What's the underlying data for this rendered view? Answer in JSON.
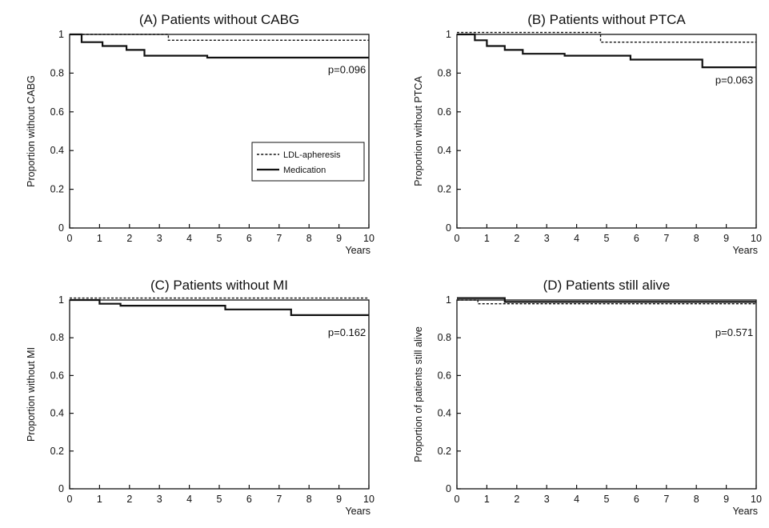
{
  "chart_data": [
    {
      "type": "line",
      "title": "(A) Patients without CABG",
      "xlabel": "Years",
      "ylabel": "Proportion without CABG",
      "xlim": [
        0,
        10
      ],
      "ylim": [
        0,
        1
      ],
      "xticks": [
        "0",
        "1",
        "2",
        "3",
        "4",
        "5",
        "6",
        "7",
        "8",
        "9",
        "10"
      ],
      "yticks": [
        "0",
        "0.2",
        "0.4",
        "0.6",
        "0.8",
        "1"
      ],
      "annotation": "p=0.096",
      "legend": [
        "LDL-apheresis",
        "Medication"
      ],
      "legend_position": "center-right",
      "series": [
        {
          "name": "LDL-apheresis",
          "style": "dashed",
          "points": [
            [
              0,
              1.0
            ],
            [
              3.3,
              1.0
            ],
            [
              3.3,
              0.97
            ],
            [
              10,
              0.97
            ]
          ]
        },
        {
          "name": "Medication",
          "style": "solid",
          "points": [
            [
              0,
              1.0
            ],
            [
              0.4,
              1.0
            ],
            [
              0.4,
              0.96
            ],
            [
              1.1,
              0.96
            ],
            [
              1.1,
              0.94
            ],
            [
              1.9,
              0.94
            ],
            [
              1.9,
              0.92
            ],
            [
              2.5,
              0.92
            ],
            [
              2.5,
              0.89
            ],
            [
              4.6,
              0.89
            ],
            [
              4.6,
              0.88
            ],
            [
              10,
              0.88
            ]
          ]
        }
      ]
    },
    {
      "type": "line",
      "title": "(B) Patients without PTCA",
      "xlabel": "Years",
      "ylabel": "Proportion without PTCA",
      "xlim": [
        0,
        10
      ],
      "ylim": [
        0,
        1
      ],
      "xticks": [
        "0",
        "1",
        "2",
        "3",
        "4",
        "5",
        "6",
        "7",
        "8",
        "9",
        "10"
      ],
      "yticks": [
        "0",
        "0.2",
        "0.4",
        "0.6",
        "0.8",
        "1"
      ],
      "annotation": "p=0.063",
      "series": [
        {
          "name": "LDL-apheresis",
          "style": "dashed",
          "points": [
            [
              0,
              1.01
            ],
            [
              4.8,
              1.01
            ],
            [
              4.8,
              0.96
            ],
            [
              10,
              0.96
            ]
          ]
        },
        {
          "name": "Medication",
          "style": "solid",
          "points": [
            [
              0,
              1.0
            ],
            [
              0.6,
              1.0
            ],
            [
              0.6,
              0.97
            ],
            [
              1.0,
              0.97
            ],
            [
              1.0,
              0.94
            ],
            [
              1.6,
              0.94
            ],
            [
              1.6,
              0.92
            ],
            [
              2.2,
              0.92
            ],
            [
              2.2,
              0.9
            ],
            [
              3.6,
              0.9
            ],
            [
              3.6,
              0.89
            ],
            [
              5.8,
              0.89
            ],
            [
              5.8,
              0.87
            ],
            [
              8.2,
              0.87
            ],
            [
              8.2,
              0.83
            ],
            [
              10,
              0.83
            ]
          ]
        }
      ]
    },
    {
      "type": "line",
      "title": "(C) Patients without MI",
      "xlabel": "Years",
      "ylabel": "Proportion without MI",
      "xlim": [
        0,
        10
      ],
      "ylim": [
        0,
        1
      ],
      "xticks": [
        "0",
        "1",
        "2",
        "3",
        "4",
        "5",
        "6",
        "7",
        "8",
        "9",
        "10"
      ],
      "yticks": [
        "0",
        "0.2",
        "0.4",
        "0.6",
        "0.8",
        "1"
      ],
      "annotation": "p=0.162",
      "series": [
        {
          "name": "LDL-apheresis",
          "style": "dashed",
          "points": [
            [
              0,
              1.01
            ],
            [
              10,
              1.01
            ]
          ]
        },
        {
          "name": "Medication",
          "style": "solid",
          "points": [
            [
              0,
              1.0
            ],
            [
              1.0,
              1.0
            ],
            [
              1.0,
              0.98
            ],
            [
              1.7,
              0.98
            ],
            [
              1.7,
              0.97
            ],
            [
              5.2,
              0.97
            ],
            [
              5.2,
              0.95
            ],
            [
              7.4,
              0.95
            ],
            [
              7.4,
              0.92
            ],
            [
              10,
              0.92
            ]
          ]
        }
      ]
    },
    {
      "type": "line",
      "title": "(D) Patients still alive",
      "xlabel": "Years",
      "ylabel": "Proportion of patients still alive",
      "xlim": [
        0,
        10
      ],
      "ylim": [
        0,
        1
      ],
      "xticks": [
        "0",
        "1",
        "2",
        "3",
        "4",
        "5",
        "6",
        "7",
        "8",
        "9",
        "10"
      ],
      "yticks": [
        "0",
        "0.2",
        "0.4",
        "0.6",
        "0.8",
        "1"
      ],
      "annotation": "p=0.571",
      "series": [
        {
          "name": "LDL-apheresis",
          "style": "dashed",
          "points": [
            [
              0,
              1.0
            ],
            [
              0.7,
              1.0
            ],
            [
              0.7,
              0.98
            ],
            [
              10,
              0.98
            ]
          ]
        },
        {
          "name": "Medication",
          "style": "solid",
          "points": [
            [
              0,
              1.01
            ],
            [
              1.6,
              1.01
            ],
            [
              1.6,
              0.99
            ],
            [
              10,
              0.99
            ]
          ]
        }
      ]
    }
  ]
}
